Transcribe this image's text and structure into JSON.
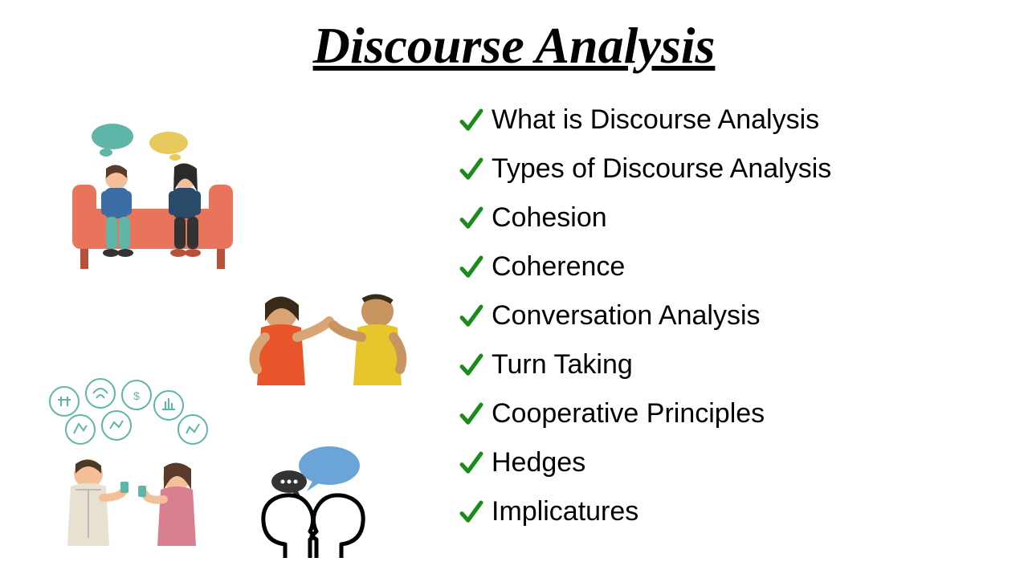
{
  "title": "Discourse Analysis",
  "check_color": "#1a8c1a",
  "text_color": "#000000",
  "title_color": "#000000",
  "background": "#ffffff",
  "title_fontsize": 64,
  "item_fontsize": 34,
  "items": [
    "What is Discourse Analysis",
    "Types of Discourse Analysis",
    "Cohesion",
    "Coherence",
    "Conversation Analysis",
    "Turn Taking",
    "Cooperative Principles",
    "Hedges",
    "Implicatures"
  ],
  "illustrations": [
    {
      "name": "two-people-on-couch-talking",
      "colors": {
        "couch": "#e8745c",
        "person1_shirt": "#3a6ea5",
        "person1_pants": "#5fb5a8",
        "person2_shirt": "#2a4a6a",
        "person2_pants": "#333",
        "bubble1": "#5fb5a8",
        "bubble2": "#e8c95c"
      }
    },
    {
      "name": "two-people-gesturing",
      "colors": {
        "person1_shirt": "#e8552a",
        "person2_shirt": "#e8c52a",
        "skin": "#d9a574"
      }
    },
    {
      "name": "two-people-with-thought-icons",
      "colors": {
        "person1_shirt": "#e8e0d0",
        "person2_shirt": "#d88090",
        "icon_stroke": "#5fb5a8"
      }
    },
    {
      "name": "two-heads-speech-bubbles",
      "colors": {
        "head_stroke": "#000000",
        "bubble1": "#6ba5d8",
        "bubble2": "#333333"
      }
    }
  ]
}
